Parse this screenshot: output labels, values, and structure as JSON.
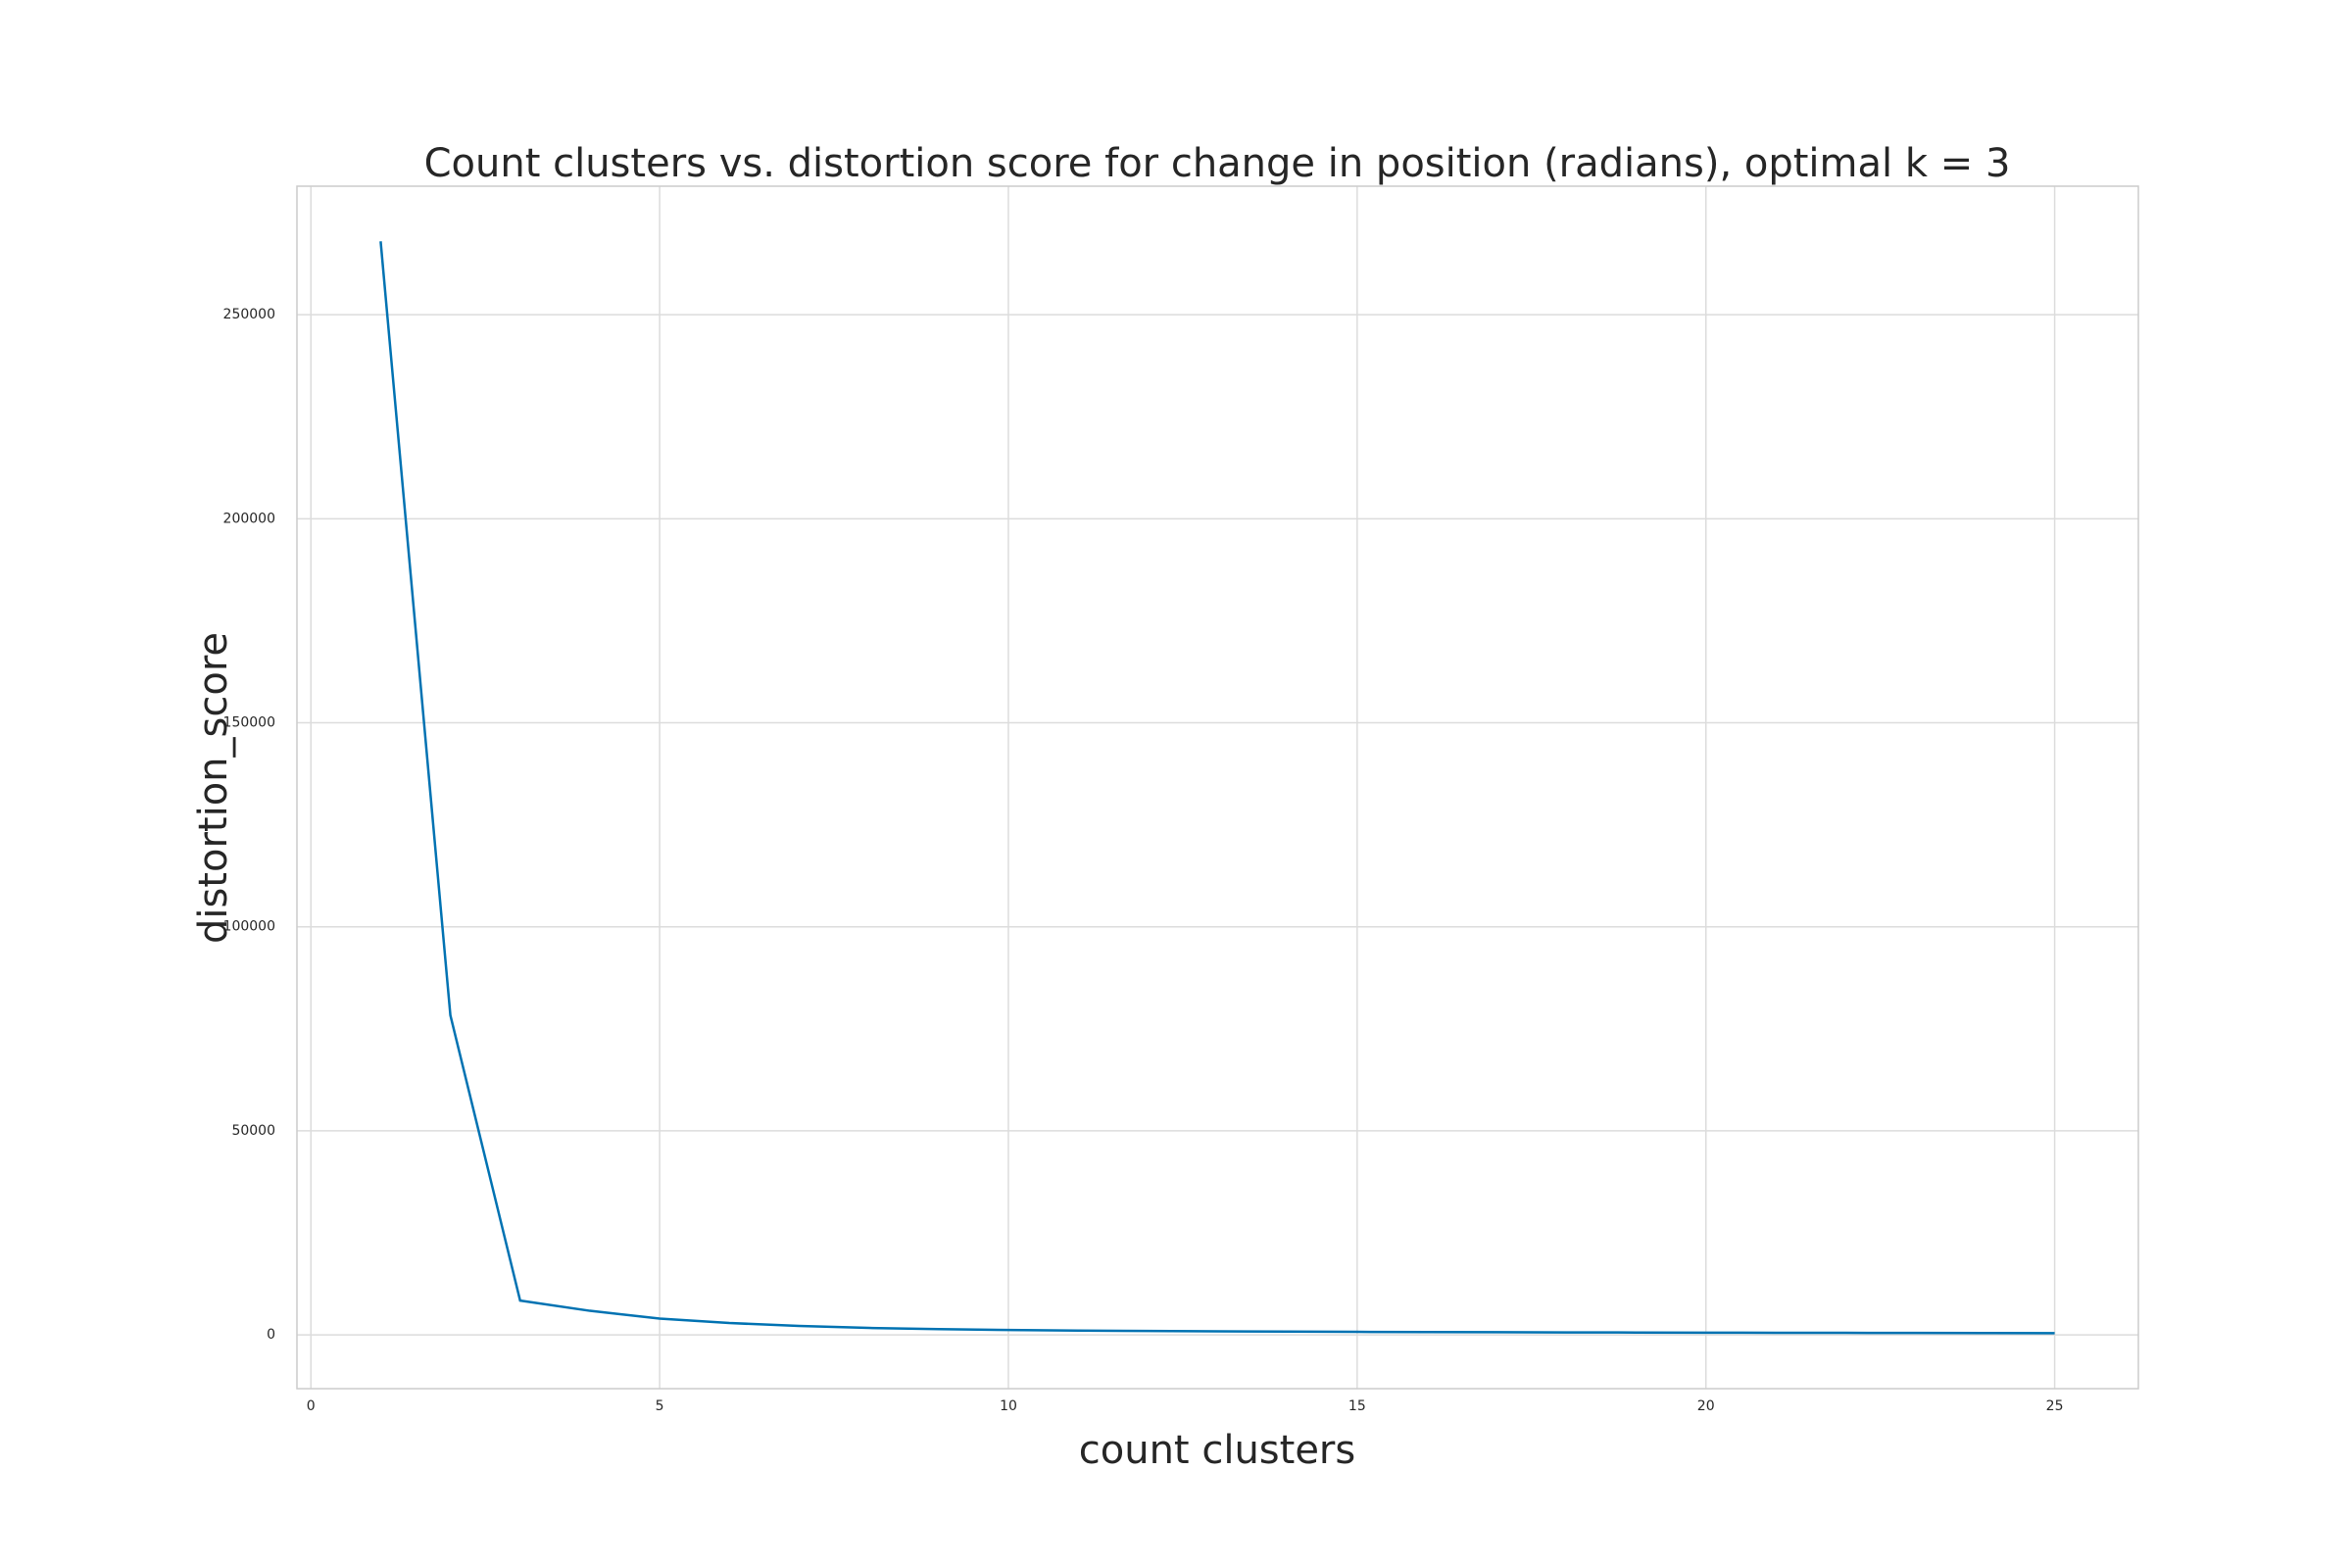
{
  "chart_data": {
    "type": "line",
    "title": "Count clusters vs. distortion score for change in position (radians), optimal k = 3",
    "xlabel": "count clusters",
    "ylabel": "distortion_score",
    "x": [
      1,
      2,
      3,
      4,
      5,
      6,
      7,
      8,
      9,
      10,
      11,
      12,
      13,
      14,
      15,
      16,
      17,
      18,
      19,
      20,
      21,
      22,
      23,
      24,
      25
    ],
    "series": [
      {
        "name": "distortion_score",
        "color": "#0072b2",
        "values": [
          268000,
          78300,
          8400,
          5900,
          4000,
          2900,
          2200,
          1700,
          1400,
          1200,
          1050,
          950,
          870,
          800,
          740,
          690,
          650,
          610,
          580,
          550,
          520,
          500,
          470,
          450,
          420
        ]
      }
    ],
    "xlim": [
      -0.2,
      26.2
    ],
    "ylim": [
      -13180,
      281500
    ],
    "xticks": [
      0,
      5,
      10,
      15,
      20,
      25
    ],
    "yticks": [
      0,
      50000,
      100000,
      150000,
      200000,
      250000
    ],
    "grid": true
  }
}
